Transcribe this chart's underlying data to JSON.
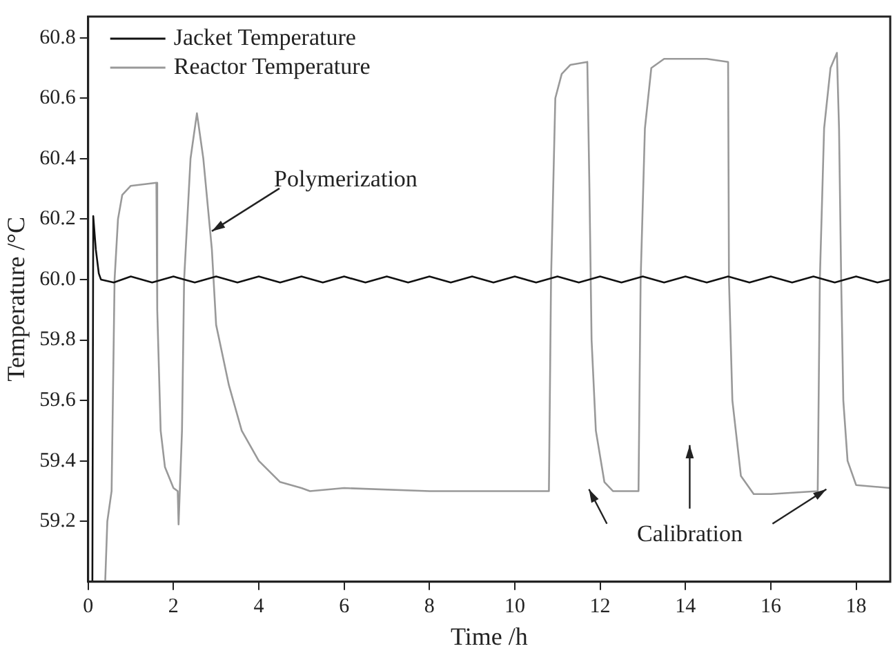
{
  "chart_data": {
    "type": "line",
    "xlabel": "Time /h",
    "ylabel": "Temperature /°C",
    "xlim": [
      0,
      18.8
    ],
    "xticks": [
      0,
      2,
      4,
      6,
      8,
      10,
      12,
      14,
      16,
      18
    ],
    "ylim": [
      59.0,
      60.87
    ],
    "yticks": [
      59.2,
      59.4,
      59.6,
      59.8,
      {
        "value": 60,
        "label": "60.0"
      },
      60.2,
      60.4,
      60.6,
      60.8
    ],
    "grid": false,
    "legend": "top left",
    "marker": "none",
    "line_style": "solid",
    "annotations": [
      {
        "text": "Polymerization",
        "x": 2.9,
        "y": 60.16
      },
      "Calibration"
    ],
    "series": [
      {
        "name": "Jacket Temperature",
        "color": "#111111",
        "x": [
          0.1,
          0.12,
          0.18,
          0.25,
          0.3,
          0.6,
          1.0,
          1.5,
          2.0,
          2.5,
          3.0,
          3.5,
          4.0,
          4.5,
          5.0,
          5.5,
          6.0,
          6.5,
          7.0,
          7.5,
          8.0,
          8.5,
          9.0,
          9.5,
          10.0,
          10.5,
          11.0,
          11.5,
          12.0,
          12.5,
          13.0,
          13.5,
          14.0,
          14.5,
          15.0,
          15.5,
          16.0,
          16.5,
          17.0,
          17.5,
          18.0,
          18.5,
          18.8
        ],
        "values": [
          59.0,
          60.21,
          60.1,
          60.02,
          60.0,
          59.99,
          60.01,
          59.99,
          60.01,
          59.99,
          60.01,
          59.99,
          60.01,
          59.99,
          60.01,
          59.99,
          60.01,
          59.99,
          60.01,
          59.99,
          60.01,
          59.99,
          60.01,
          59.99,
          60.01,
          59.99,
          60.01,
          59.99,
          60.01,
          59.99,
          60.01,
          59.99,
          60.01,
          59.99,
          60.01,
          59.99,
          60.01,
          59.99,
          60.01,
          59.99,
          60.01,
          59.99,
          60.0
        ]
      },
      {
        "name": "Reactor Temperature",
        "color": "#999999",
        "x": [
          0.4,
          0.45,
          0.55,
          0.62,
          0.7,
          0.8,
          1.0,
          1.6,
          1.62,
          1.7,
          1.8,
          2.0,
          2.1,
          2.12,
          2.2,
          2.25,
          2.4,
          2.55,
          2.7,
          2.9,
          3.0,
          3.3,
          3.6,
          4.0,
          4.5,
          5.0,
          5.2,
          6.0,
          8.0,
          10.0,
          10.8,
          10.85,
          10.95,
          11.1,
          11.3,
          11.7,
          11.75,
          11.8,
          11.9,
          12.1,
          12.3,
          12.9,
          12.95,
          13.05,
          13.2,
          13.5,
          14.5,
          15.0,
          15.02,
          15.1,
          15.3,
          15.6,
          16.0,
          17.1,
          17.15,
          17.25,
          17.4,
          17.55,
          17.6,
          17.65,
          17.7,
          17.8,
          18.0,
          18.8
        ],
        "values": [
          59.0,
          59.2,
          59.3,
          60.0,
          60.2,
          60.28,
          60.31,
          60.32,
          59.9,
          59.5,
          59.38,
          59.31,
          59.3,
          59.19,
          59.5,
          60.0,
          60.4,
          60.55,
          60.4,
          60.1,
          59.85,
          59.65,
          59.5,
          59.4,
          59.33,
          59.31,
          59.3,
          59.31,
          59.3,
          59.3,
          59.3,
          60.0,
          60.6,
          60.68,
          60.71,
          60.72,
          60.3,
          59.8,
          59.5,
          59.33,
          59.3,
          59.3,
          60.0,
          60.5,
          60.7,
          60.73,
          60.73,
          60.72,
          60.0,
          59.6,
          59.35,
          59.29,
          59.29,
          59.3,
          60.0,
          60.5,
          60.7,
          60.75,
          60.5,
          60.0,
          59.6,
          59.4,
          59.32,
          59.31
        ]
      }
    ]
  }
}
